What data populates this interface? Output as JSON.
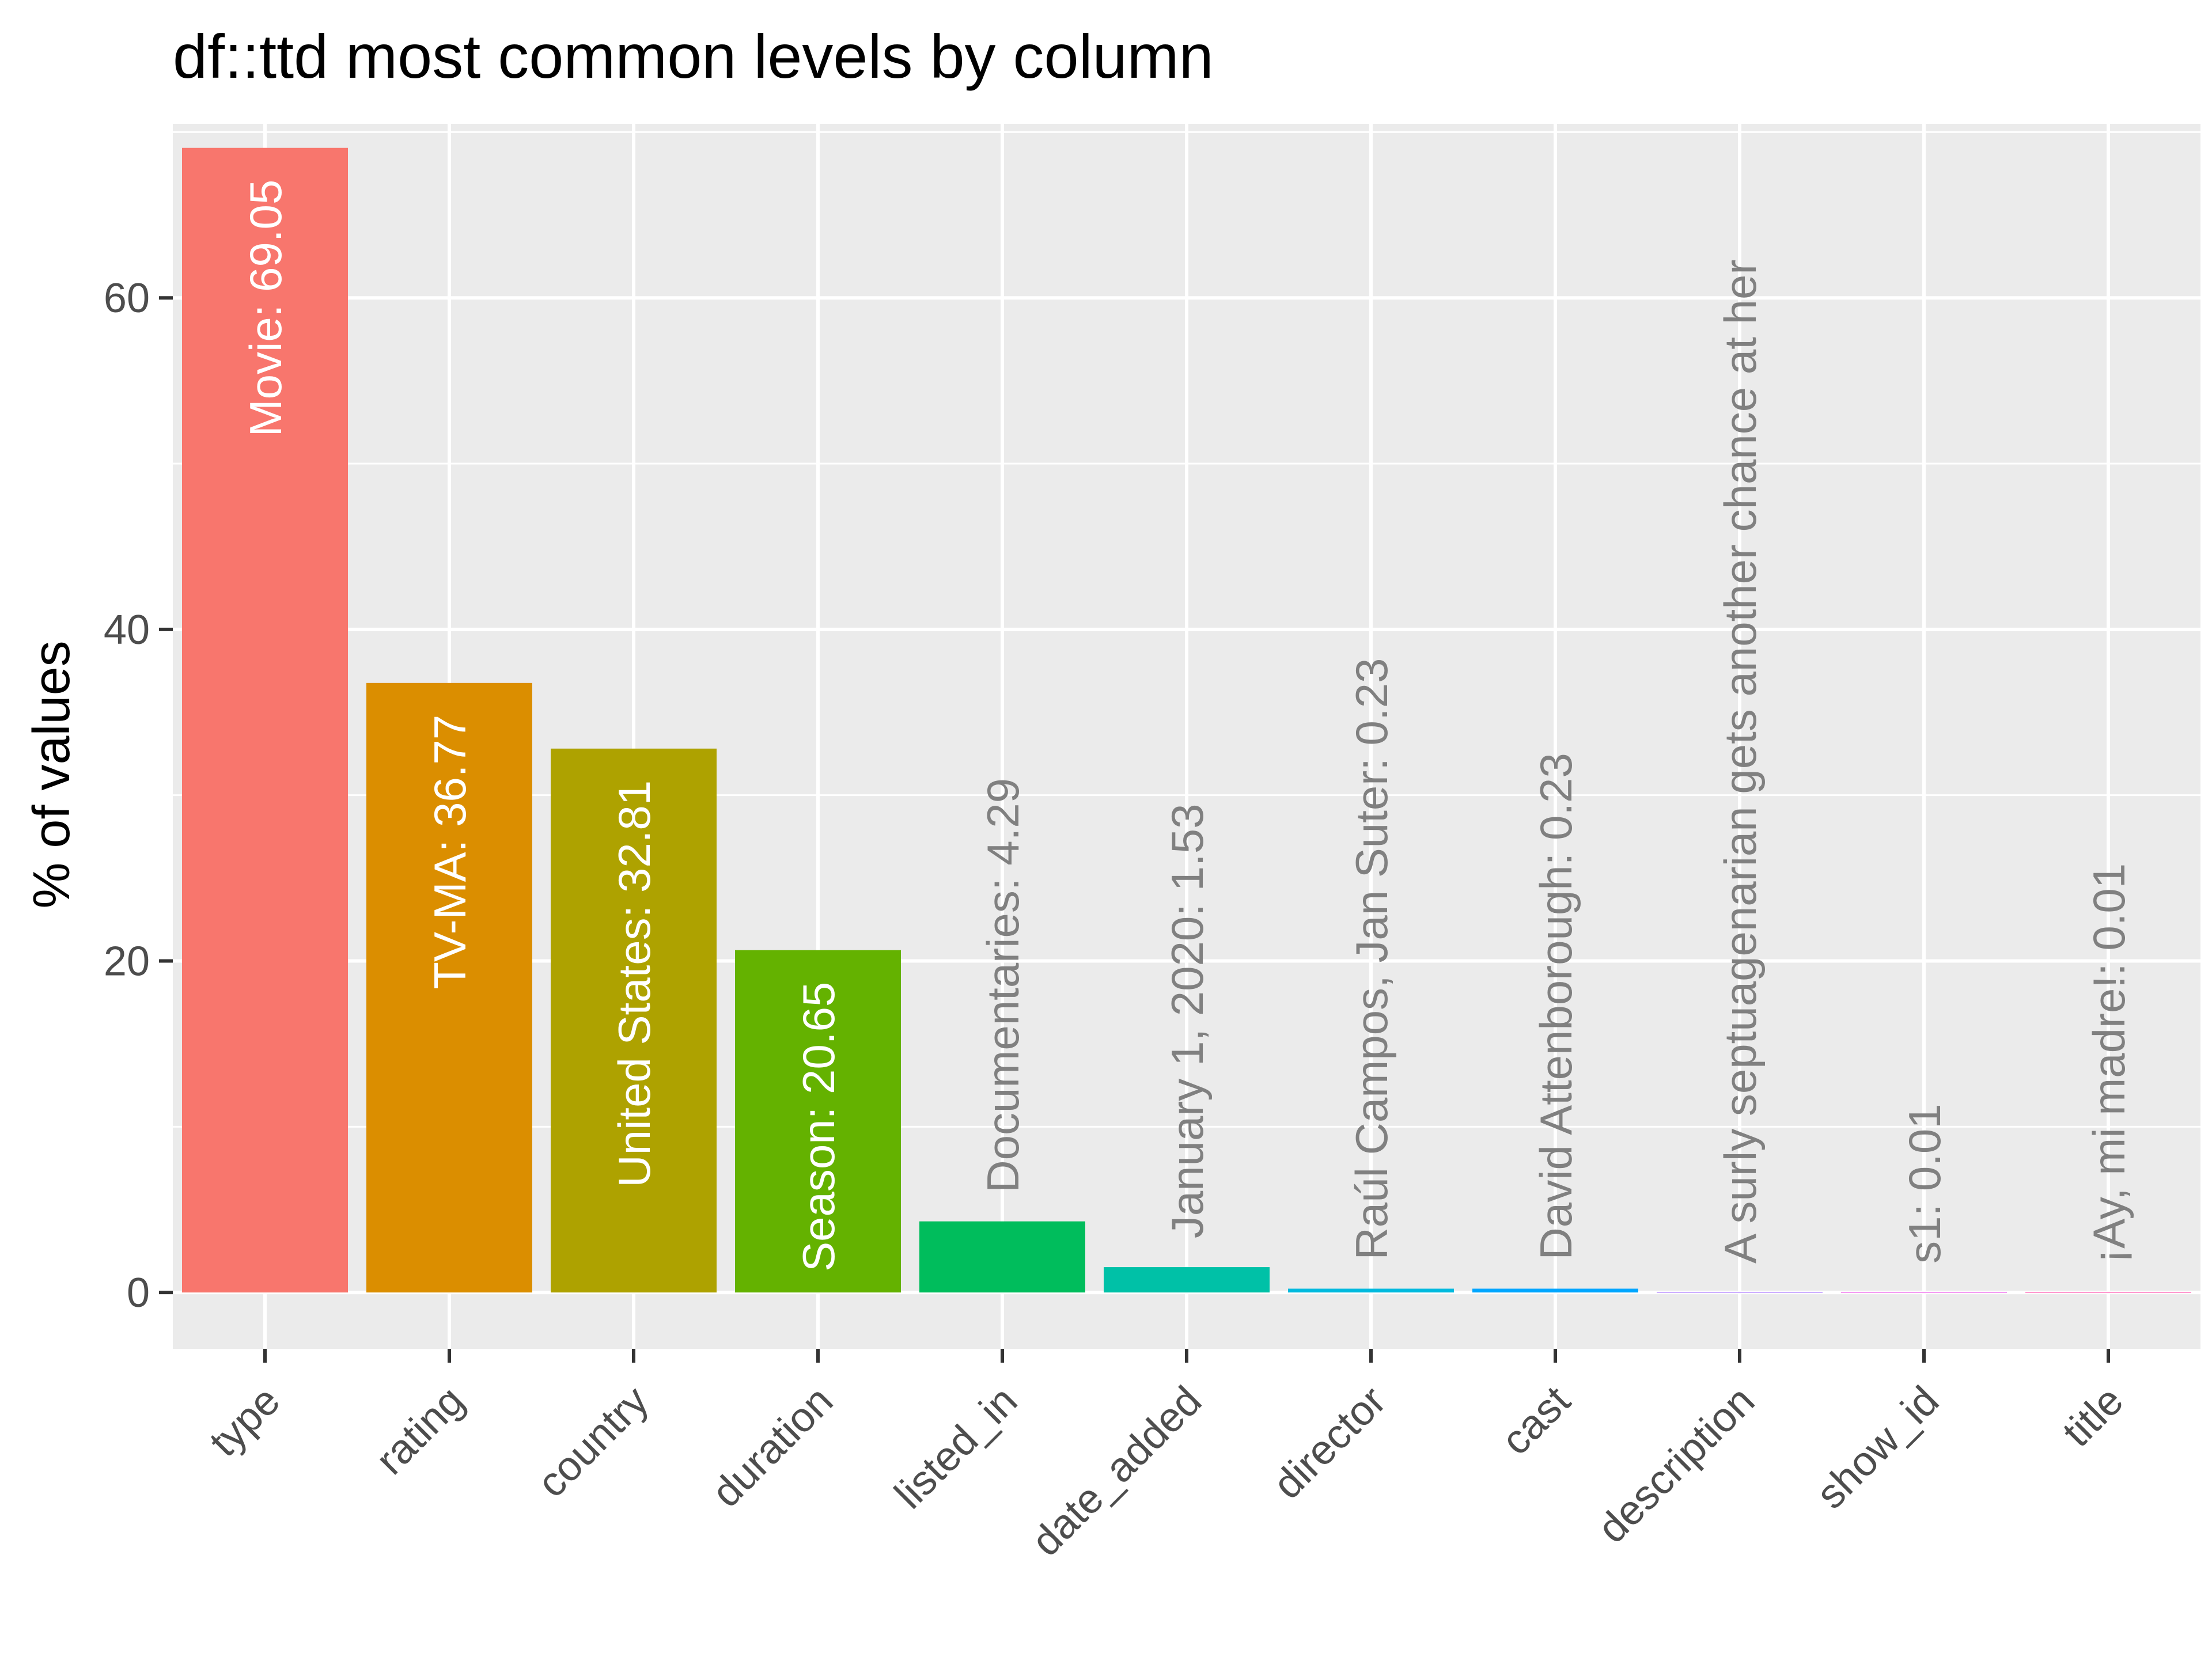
{
  "chart_data": {
    "type": "bar",
    "title": "df::ttd most common levels by column",
    "xlabel": "",
    "ylabel": "% of values",
    "ylim": [
      -3.4,
      70.5
    ],
    "yticks": [
      0,
      20,
      40,
      60
    ],
    "grid": true,
    "legend": "none",
    "categories": [
      "type",
      "rating",
      "country",
      "duration",
      "listed_in",
      "date_added",
      "director",
      "cast",
      "description",
      "show_id",
      "title"
    ],
    "values": [
      69.05,
      36.77,
      32.81,
      20.65,
      4.29,
      1.53,
      0.23,
      0.23,
      0.01,
      0.01,
      0.01
    ],
    "labels": [
      "Movie:  69.05",
      "TV-MA:  36.77",
      "United States:  32.81",
      "Season:  20.65",
      "Documentaries:  4.29",
      "January 1, 2020:  1.53",
      "Raúl Campos, Jan Suter:  0.23",
      "David Attenborough:  0.23",
      "A surly septuagenarian gets another chance at her",
      "s1:  0.01",
      "¡Ay, mi madre!:  0.01"
    ],
    "colors": [
      "#F8766D",
      "#DB8E00",
      "#AEA200",
      "#64B200",
      "#00BD5C",
      "#00C1A7",
      "#00BADE",
      "#00A6FF",
      "#B385FF",
      "#EF67EB",
      "#FF63B6"
    ],
    "label_inside": [
      true,
      true,
      true,
      true,
      false,
      false,
      false,
      false,
      false,
      false,
      false
    ],
    "colors_text": {
      "inside": "#ffffff",
      "outside": "#808080"
    }
  }
}
